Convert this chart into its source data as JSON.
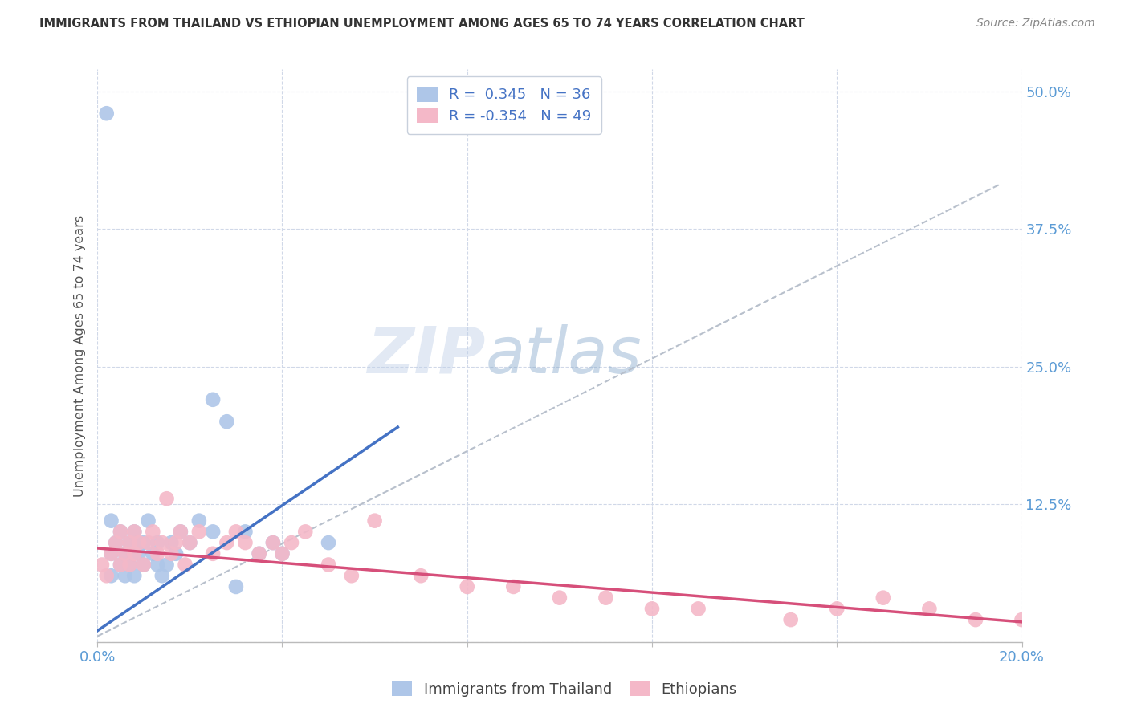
{
  "title": "IMMIGRANTS FROM THAILAND VS ETHIOPIAN UNEMPLOYMENT AMONG AGES 65 TO 74 YEARS CORRELATION CHART",
  "source": "Source: ZipAtlas.com",
  "ylabel": "Unemployment Among Ages 65 to 74 years",
  "xlim": [
    0.0,
    0.2
  ],
  "ylim": [
    0.0,
    0.52
  ],
  "xticks": [
    0.0,
    0.04,
    0.08,
    0.12,
    0.16,
    0.2
  ],
  "ytick_positions": [
    0.0,
    0.125,
    0.25,
    0.375,
    0.5
  ],
  "ytick_labels": [
    "",
    "12.5%",
    "25.0%",
    "37.5%",
    "50.0%"
  ],
  "watermark_zip": "ZIP",
  "watermark_atlas": "atlas",
  "legend_r1_label": "R =  0.345   N = 36",
  "legend_r2_label": "R = -0.354   N = 49",
  "blue_scatter_color": "#aec6e8",
  "pink_scatter_color": "#f4b8c8",
  "blue_line_color": "#4472c4",
  "pink_line_color": "#d64f7a",
  "dashed_line_color": "#b8c0cc",
  "title_color": "#333333",
  "axis_tick_color": "#5b9bd5",
  "background_color": "#ffffff",
  "grid_color": "#d0d8e8",
  "thailand_x": [
    0.002,
    0.003,
    0.003,
    0.004,
    0.005,
    0.005,
    0.006,
    0.006,
    0.007,
    0.007,
    0.008,
    0.008,
    0.009,
    0.01,
    0.01,
    0.011,
    0.012,
    0.013,
    0.013,
    0.014,
    0.015,
    0.016,
    0.017,
    0.018,
    0.02,
    0.022,
    0.025,
    0.028,
    0.032,
    0.038,
    0.003,
    0.025,
    0.03,
    0.035,
    0.04,
    0.05
  ],
  "thailand_y": [
    0.48,
    0.08,
    0.11,
    0.09,
    0.07,
    0.1,
    0.06,
    0.08,
    0.09,
    0.07,
    0.1,
    0.06,
    0.08,
    0.09,
    0.07,
    0.11,
    0.08,
    0.09,
    0.07,
    0.06,
    0.07,
    0.09,
    0.08,
    0.1,
    0.09,
    0.11,
    0.22,
    0.2,
    0.1,
    0.09,
    0.06,
    0.1,
    0.05,
    0.08,
    0.08,
    0.09
  ],
  "ethiopia_x": [
    0.001,
    0.002,
    0.003,
    0.004,
    0.005,
    0.005,
    0.006,
    0.007,
    0.007,
    0.008,
    0.008,
    0.009,
    0.01,
    0.011,
    0.012,
    0.013,
    0.014,
    0.015,
    0.016,
    0.017,
    0.018,
    0.019,
    0.02,
    0.022,
    0.025,
    0.028,
    0.03,
    0.032,
    0.035,
    0.038,
    0.04,
    0.042,
    0.045,
    0.05,
    0.055,
    0.06,
    0.07,
    0.08,
    0.09,
    0.1,
    0.11,
    0.12,
    0.13,
    0.15,
    0.16,
    0.17,
    0.18,
    0.19,
    0.2
  ],
  "ethiopia_y": [
    0.07,
    0.06,
    0.08,
    0.09,
    0.1,
    0.07,
    0.08,
    0.09,
    0.07,
    0.1,
    0.08,
    0.09,
    0.07,
    0.09,
    0.1,
    0.08,
    0.09,
    0.13,
    0.08,
    0.09,
    0.1,
    0.07,
    0.09,
    0.1,
    0.08,
    0.09,
    0.1,
    0.09,
    0.08,
    0.09,
    0.08,
    0.09,
    0.1,
    0.07,
    0.06,
    0.11,
    0.06,
    0.05,
    0.05,
    0.04,
    0.04,
    0.03,
    0.03,
    0.02,
    0.03,
    0.04,
    0.03,
    0.02,
    0.02
  ],
  "thai_trend_x0": 0.0,
  "thai_trend_x1": 0.065,
  "thai_trend_y0": 0.01,
  "thai_trend_y1": 0.195,
  "eth_trend_x0": 0.0,
  "eth_trend_x1": 0.2,
  "eth_trend_y0": 0.085,
  "eth_trend_y1": 0.018,
  "dash_trend_x0": 0.0,
  "dash_trend_x1": 0.195,
  "dash_trend_y0": 0.005,
  "dash_trend_y1": 0.415
}
